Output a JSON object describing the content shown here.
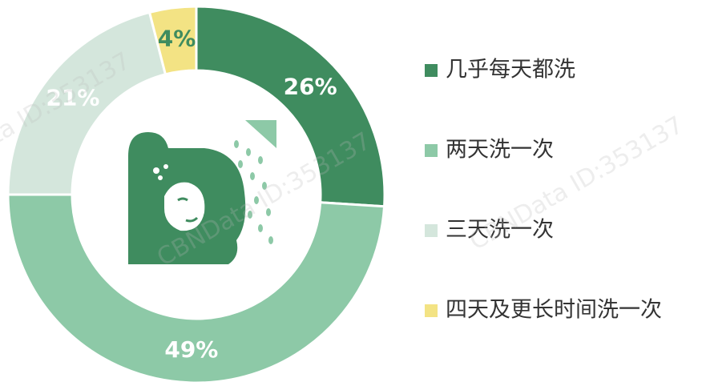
{
  "chart_data": {
    "type": "donut",
    "categories": [
      "几乎每天都洗",
      "两天洗一次",
      "三天洗一次",
      "四天及更长时间洗一次"
    ],
    "values": [
      26,
      49,
      21,
      4
    ],
    "value_labels": [
      "26%",
      "49%",
      "21%",
      "4%"
    ],
    "colors": [
      "#3f8c5f",
      "#8dc9a7",
      "#d4e6dc",
      "#f3e384"
    ],
    "legend": "right",
    "watermark": "CBNData ID:353137"
  }
}
